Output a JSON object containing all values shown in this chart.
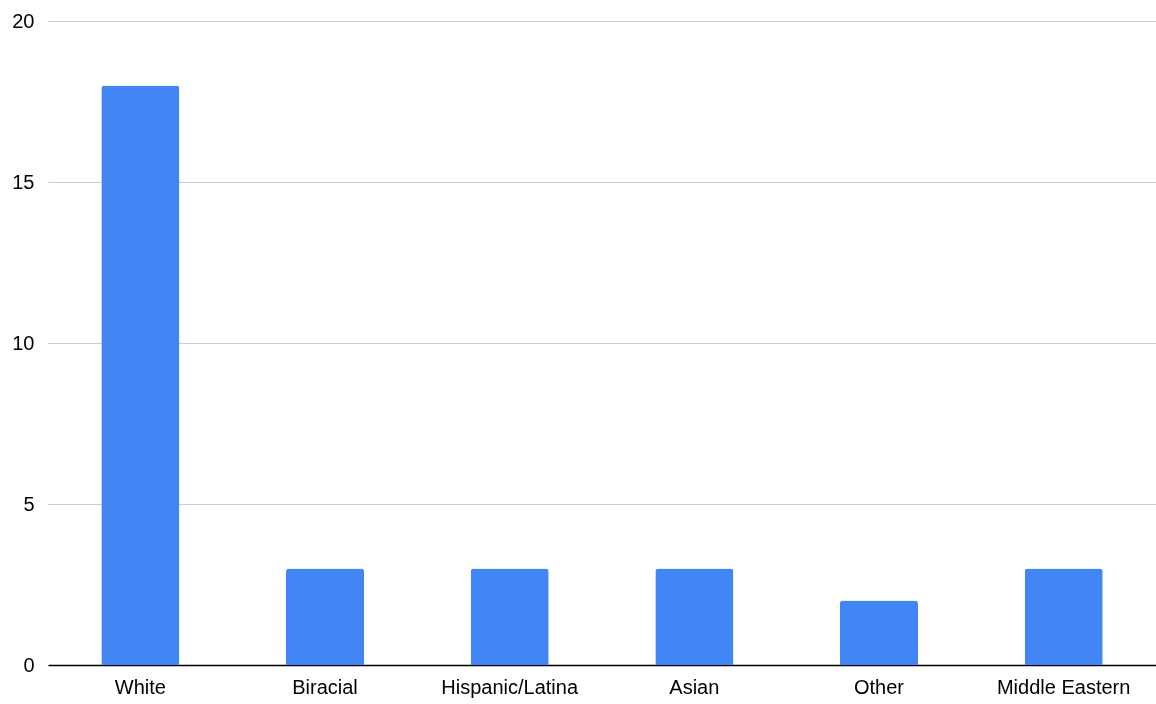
{
  "chart_data": {
    "type": "bar",
    "categories": [
      "White",
      "Biracial",
      "Hispanic/Latina",
      "Asian",
      "Other",
      "Middle Eastern"
    ],
    "values": [
      18,
      3,
      3,
      3,
      2,
      3
    ],
    "color": "#4285f4",
    "ylim": [
      0,
      20
    ],
    "yticks": [
      0,
      5,
      10,
      15,
      20
    ],
    "grid": "y"
  }
}
